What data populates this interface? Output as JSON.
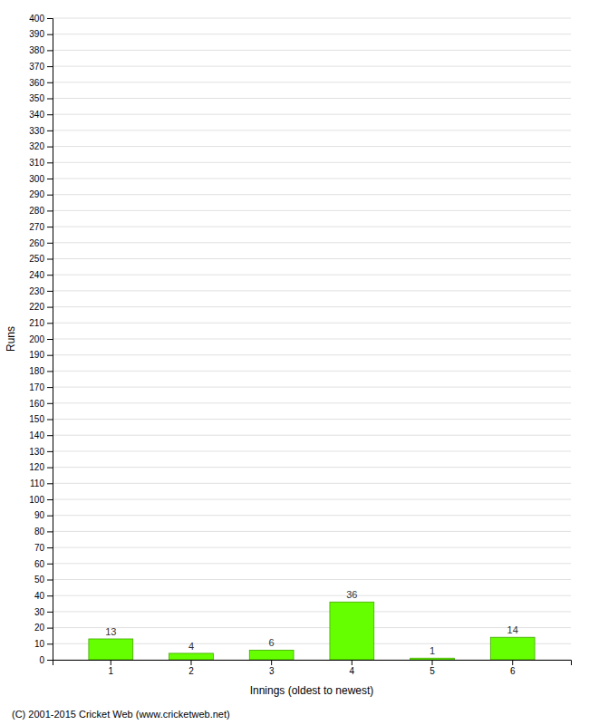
{
  "chart_data": {
    "type": "bar",
    "categories": [
      1,
      2,
      3,
      4,
      5,
      6
    ],
    "values": [
      13,
      4,
      6,
      36,
      1,
      14
    ],
    "color": "#66ff00",
    "xlabel": "Innings (oldest to newest)",
    "ylabel": "Runs",
    "ylim": [
      0,
      400
    ],
    "yticks": [
      0,
      10,
      20,
      30,
      40,
      50,
      60,
      70,
      80,
      90,
      100,
      110,
      120,
      130,
      140,
      150,
      160,
      170,
      180,
      190,
      200,
      210,
      220,
      230,
      240,
      250,
      260,
      270,
      280,
      290,
      300,
      310,
      320,
      330,
      340,
      350,
      360,
      370,
      380,
      390,
      400
    ],
    "grid": true,
    "data_labels": true,
    "annotations": [
      "(C) 2001-2015 Cricket Web (www.cricketweb.net)"
    ]
  }
}
